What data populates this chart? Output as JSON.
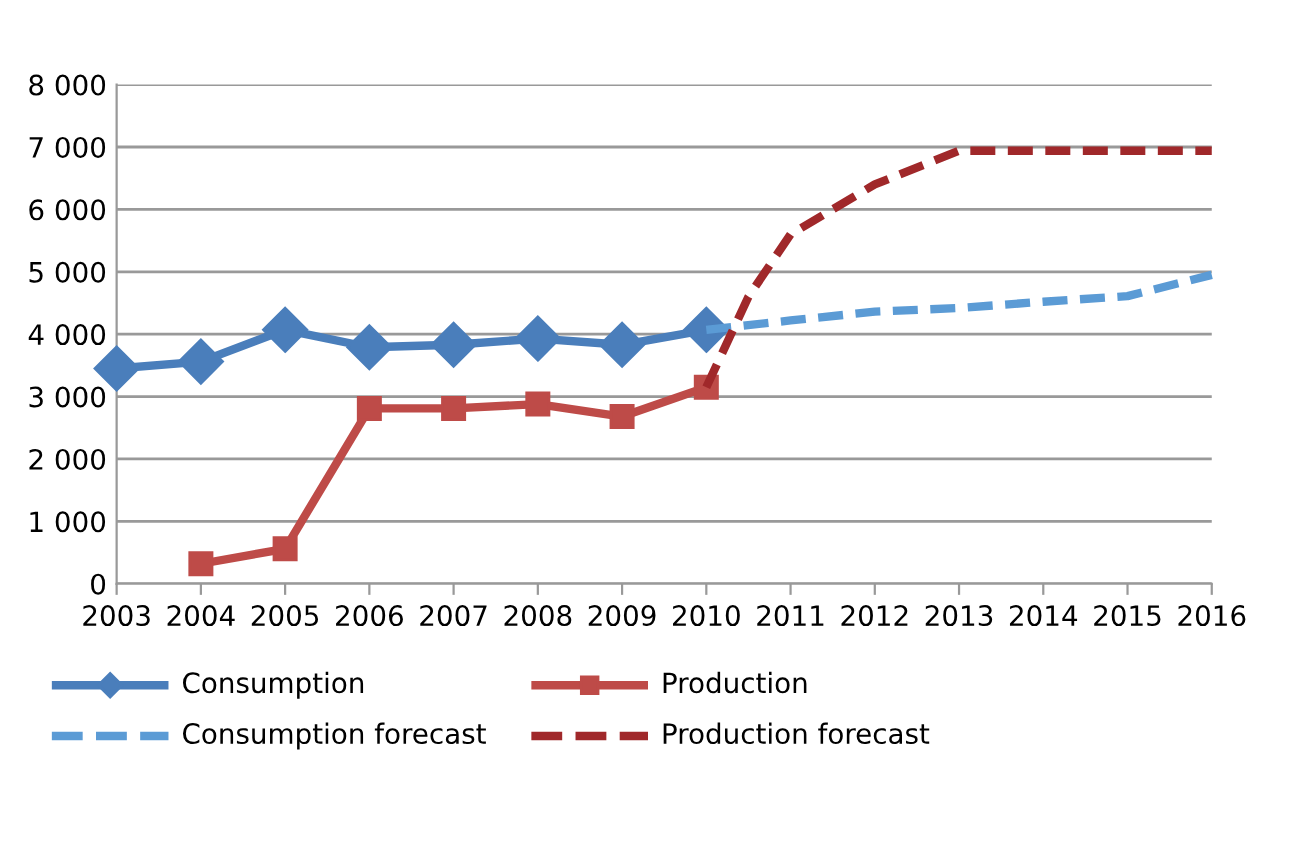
{
  "chart_data": {
    "type": "line",
    "xlim": [
      2003,
      2016
    ],
    "xticks": [
      2003,
      2004,
      2005,
      2006,
      2007,
      2008,
      2009,
      2010,
      2011,
      2012,
      2013,
      2014,
      2015,
      2016
    ],
    "ylim": [
      0,
      8000
    ],
    "yticks": [
      {
        "value": 0,
        "label": "0"
      },
      {
        "value": 1000,
        "label": "1 000"
      },
      {
        "value": 2000,
        "label": "2 000"
      },
      {
        "value": 3000,
        "label": "3 000"
      },
      {
        "value": 4000,
        "label": "4 000"
      },
      {
        "value": 5000,
        "label": "5 000"
      },
      {
        "value": 6000,
        "label": "6 000"
      },
      {
        "value": 7000,
        "label": "7 000"
      },
      {
        "value": 8000,
        "label": "8 000"
      }
    ],
    "grid": "y",
    "legend": "bottom",
    "series": [
      {
        "name": "Consumption",
        "color": "#4a7ebb",
        "marker": "diamond",
        "line_style": "solid",
        "x": [
          2003,
          2004,
          2005,
          2006,
          2007,
          2008,
          2009,
          2010
        ],
        "values": [
          3450,
          3560,
          4070,
          3790,
          3830,
          3930,
          3830,
          4070
        ]
      },
      {
        "name": "Production",
        "color": "#be4b48",
        "marker": "square",
        "line_style": "solid",
        "x": [
          2004,
          2005,
          2006,
          2007,
          2008,
          2009,
          2010
        ],
        "values": [
          320,
          560,
          2810,
          2810,
          2880,
          2680,
          3150
        ]
      },
      {
        "name": "Consumption forecast",
        "color": "#5b9bd5",
        "marker": "none",
        "line_style": "dashed",
        "x": [
          2010,
          2011,
          2012,
          2013,
          2014,
          2015,
          2016
        ],
        "values": [
          4070,
          4220,
          4360,
          4420,
          4520,
          4610,
          4950
        ]
      },
      {
        "name": "Production forecast",
        "color": "#a0282a",
        "marker": "none",
        "line_style": "dashed",
        "x": [
          2010,
          2010.5,
          2011,
          2012,
          2013,
          2014,
          2015,
          2016
        ],
        "values": [
          3150,
          4600,
          5600,
          6400,
          6940,
          6940,
          6940,
          6940
        ]
      }
    ]
  }
}
